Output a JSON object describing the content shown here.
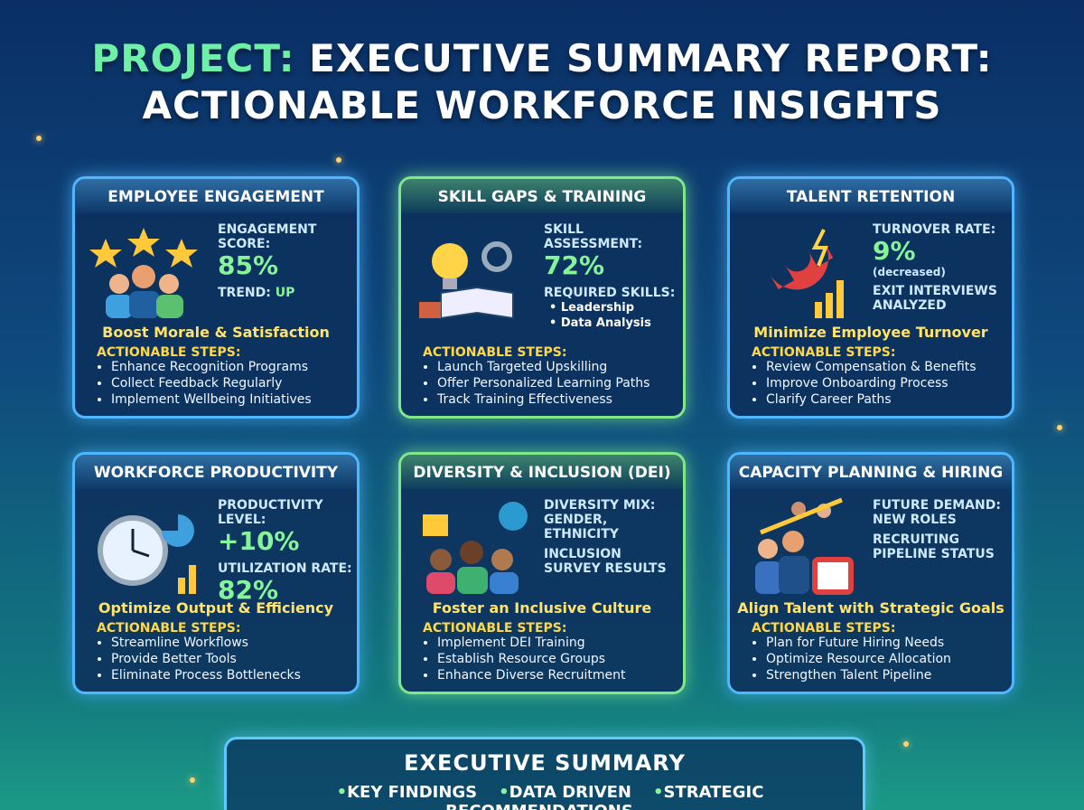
{
  "header": {
    "title_prefix": "PROJECT:",
    "title_rest": "EXECUTIVE SUMMARY REPORT:",
    "title_line2": "ACTIONABLE WORKFORCE INSIGHTS"
  },
  "cards": [
    {
      "title": "EMPLOYEE ENGAGEMENT",
      "metric_label": "ENGAGEMENT SCORE:",
      "metric_value": "85%",
      "second_label": "TREND:",
      "second_value": "UP",
      "headline": "Boost Morale & Satisfaction",
      "steps_label": "ACTIONABLE STEPS:",
      "steps": [
        "Enhance Recognition Programs",
        "Collect Feedback Regularly",
        "Implement Wellbeing Initiatives"
      ]
    },
    {
      "title": "SKILL GAPS & TRAINING",
      "metric_label": "SKILL ASSESSMENT:",
      "metric_value": "72%",
      "second_label": "REQUIRED SKILLS:",
      "skills": [
        "Leadership",
        "Data Analysis"
      ],
      "steps_label": "ACTIONABLE STEPS:",
      "steps": [
        "Launch Targeted Upskilling",
        "Offer Personalized Learning Paths",
        "Track Training Effectiveness"
      ]
    },
    {
      "title": "TALENT RETENTION",
      "metric_label": "TURNOVER RATE:",
      "metric_value": "9%",
      "metric_note": "(decreased)",
      "second_label": "EXIT INTERVIEWS ANALYZED",
      "headline": "Minimize Employee Turnover",
      "steps_label": "ACTIONABLE STEPS:",
      "steps": [
        "Review Compensation & Benefits",
        "Improve Onboarding Process",
        "Clarify Career Paths"
      ]
    },
    {
      "title": "WORKFORCE PRODUCTIVITY",
      "metric_label": "PRODUCTIVITY LEVEL:",
      "metric_value": "+10%",
      "second_label": "UTILIZATION RATE:",
      "second_value": "82%",
      "headline": "Optimize Output & Efficiency",
      "steps_label": "ACTIONABLE STEPS:",
      "steps": [
        "Streamline Workflows",
        "Provide Better Tools",
        "Eliminate Process Bottlenecks"
      ]
    },
    {
      "title": "DIVERSITY & INCLUSION (DEI)",
      "metric_label": "DIVERSITY MIX: GENDER, ETHNICITY",
      "second_label": "INCLUSION SURVEY RESULTS",
      "headline": "Foster an Inclusive Culture",
      "steps_label": "ACTIONABLE STEPS:",
      "steps": [
        "Implement DEI Training",
        "Establish Resource Groups",
        "Enhance Diverse Recruitment"
      ]
    },
    {
      "title": "CAPACITY PLANNING & HIRING",
      "metric_label": "FUTURE DEMAND: NEW ROLES",
      "second_label": "RECRUITING PIPELINE STATUS",
      "headline": "Align Talent with Strategic Goals",
      "steps_label": "ACTIONABLE STEPS:",
      "steps": [
        "Plan for Future Hiring Needs",
        "Optimize Resource Allocation",
        "Strengthen Talent Pipeline"
      ]
    }
  ],
  "footer": {
    "title": "EXECUTIVE SUMMARY",
    "items": [
      "KEY FINDINGS",
      "DATA DRIVEN",
      "STRATEGIC RECOMMENDATIONS"
    ]
  }
}
